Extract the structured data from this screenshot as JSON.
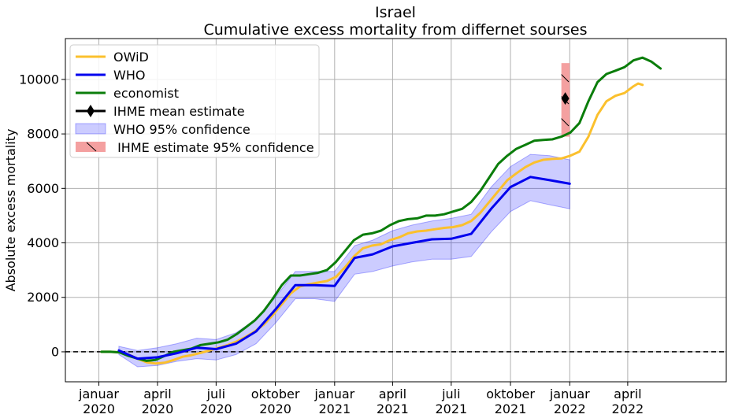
{
  "chart_data": {
    "type": "line",
    "title": "Israel",
    "subtitle": "Cumulative excess mortality from differnet sourses",
    "ylabel": "Absolute excess mortality",
    "xlabel": "",
    "ylim": [
      -1100,
      11500
    ],
    "xlim": [
      "2019-11-10",
      "2022-09-01"
    ],
    "grid": true,
    "legend_position": "top-left",
    "x_ticks": [
      {
        "date": "2020-01-01",
        "line1": "januar",
        "line2": "2020"
      },
      {
        "date": "2020-04-01",
        "line1": "april",
        "line2": "2020"
      },
      {
        "date": "2020-07-01",
        "line1": "juli",
        "line2": "2020"
      },
      {
        "date": "2020-10-01",
        "line1": "oktober",
        "line2": "2020"
      },
      {
        "date": "2021-01-01",
        "line1": "januar",
        "line2": "2021"
      },
      {
        "date": "2021-04-01",
        "line1": "april",
        "line2": "2021"
      },
      {
        "date": "2021-07-01",
        "line1": "juli",
        "line2": "2021"
      },
      {
        "date": "2021-10-01",
        "line1": "oktober",
        "line2": "2021"
      },
      {
        "date": "2022-01-01",
        "line1": "januar",
        "line2": "2022"
      },
      {
        "date": "2022-04-01",
        "line1": "april",
        "line2": "2022"
      }
    ],
    "y_ticks": [
      0,
      2000,
      4000,
      6000,
      8000,
      10000
    ],
    "zero_line": {
      "y": 0,
      "style": "dashed",
      "color": "#000000"
    },
    "series": [
      {
        "name": "OWiD",
        "color": "#fbc02d",
        "points": [
          [
            "2020-01-05",
            0
          ],
          [
            "2020-01-19",
            0
          ],
          [
            "2020-02-02",
            -20
          ],
          [
            "2020-02-16",
            -100
          ],
          [
            "2020-03-01",
            -250
          ],
          [
            "2020-03-15",
            -380
          ],
          [
            "2020-03-29",
            -430
          ],
          [
            "2020-04-12",
            -400
          ],
          [
            "2020-04-26",
            -300
          ],
          [
            "2020-05-10",
            -180
          ],
          [
            "2020-05-24",
            -120
          ],
          [
            "2020-06-07",
            -40
          ],
          [
            "2020-06-21",
            50
          ],
          [
            "2020-07-05",
            150
          ],
          [
            "2020-07-19",
            250
          ],
          [
            "2020-08-02",
            380
          ],
          [
            "2020-08-16",
            550
          ],
          [
            "2020-08-30",
            750
          ],
          [
            "2020-09-13",
            1000
          ],
          [
            "2020-09-27",
            1350
          ],
          [
            "2020-10-11",
            1750
          ],
          [
            "2020-10-25",
            2150
          ],
          [
            "2020-11-08",
            2400
          ],
          [
            "2020-11-22",
            2480
          ],
          [
            "2020-12-06",
            2540
          ],
          [
            "2020-12-20",
            2600
          ],
          [
            "2021-01-03",
            2750
          ],
          [
            "2021-01-17",
            3100
          ],
          [
            "2021-01-31",
            3500
          ],
          [
            "2021-02-14",
            3800
          ],
          [
            "2021-02-28",
            3900
          ],
          [
            "2021-03-14",
            3950
          ],
          [
            "2021-03-28",
            4100
          ],
          [
            "2021-04-11",
            4200
          ],
          [
            "2021-04-25",
            4350
          ],
          [
            "2021-05-09",
            4420
          ],
          [
            "2021-05-23",
            4450
          ],
          [
            "2021-06-06",
            4500
          ],
          [
            "2021-06-20",
            4550
          ],
          [
            "2021-07-04",
            4580
          ],
          [
            "2021-07-18",
            4650
          ],
          [
            "2021-08-01",
            4800
          ],
          [
            "2021-08-15",
            5100
          ],
          [
            "2021-08-29",
            5500
          ],
          [
            "2021-09-12",
            5900
          ],
          [
            "2021-09-26",
            6300
          ],
          [
            "2021-10-10",
            6550
          ],
          [
            "2021-10-24",
            6780
          ],
          [
            "2021-11-07",
            6950
          ],
          [
            "2021-11-21",
            7050
          ],
          [
            "2021-12-05",
            7080
          ],
          [
            "2021-12-19",
            7100
          ],
          [
            "2022-01-02",
            7200
          ],
          [
            "2022-01-16",
            7350
          ],
          [
            "2022-01-30",
            7900
          ],
          [
            "2022-02-13",
            8700
          ],
          [
            "2022-02-27",
            9200
          ],
          [
            "2022-03-13",
            9400
          ],
          [
            "2022-03-27",
            9500
          ],
          [
            "2022-04-10",
            9750
          ],
          [
            "2022-04-17",
            9850
          ],
          [
            "2022-04-24",
            9800
          ]
        ]
      },
      {
        "name": "WHO",
        "color": "#0000ee",
        "points": [
          [
            "2020-02-01",
            50
          ],
          [
            "2020-03-01",
            -250
          ],
          [
            "2020-04-01",
            -200
          ],
          [
            "2020-05-01",
            -50
          ],
          [
            "2020-06-01",
            150
          ],
          [
            "2020-07-01",
            100
          ],
          [
            "2020-08-01",
            300
          ],
          [
            "2020-09-01",
            750
          ],
          [
            "2020-10-01",
            1550
          ],
          [
            "2020-11-01",
            2450
          ],
          [
            "2020-12-01",
            2450
          ],
          [
            "2021-01-01",
            2420
          ],
          [
            "2021-02-01",
            3450
          ],
          [
            "2021-03-01",
            3580
          ],
          [
            "2021-04-01",
            3870
          ],
          [
            "2021-05-01",
            4000
          ],
          [
            "2021-06-01",
            4130
          ],
          [
            "2021-07-01",
            4150
          ],
          [
            "2021-08-01",
            4330
          ],
          [
            "2021-09-01",
            5250
          ],
          [
            "2021-10-01",
            6050
          ],
          [
            "2021-11-01",
            6420
          ],
          [
            "2021-12-01",
            6300
          ],
          [
            "2022-01-01",
            6170
          ]
        ]
      },
      {
        "name": "economist",
        "color": "#0a7d0a",
        "points": [
          [
            "2020-01-05",
            0
          ],
          [
            "2020-01-19",
            0
          ],
          [
            "2020-02-02",
            -20
          ],
          [
            "2020-02-16",
            -150
          ],
          [
            "2020-03-01",
            -250
          ],
          [
            "2020-03-15",
            -330
          ],
          [
            "2020-03-29",
            -300
          ],
          [
            "2020-04-12",
            -150
          ],
          [
            "2020-04-26",
            0
          ],
          [
            "2020-05-10",
            60
          ],
          [
            "2020-05-24",
            120
          ],
          [
            "2020-06-07",
            250
          ],
          [
            "2020-06-21",
            300
          ],
          [
            "2020-07-05",
            350
          ],
          [
            "2020-07-19",
            450
          ],
          [
            "2020-08-02",
            650
          ],
          [
            "2020-08-16",
            900
          ],
          [
            "2020-08-30",
            1150
          ],
          [
            "2020-09-13",
            1500
          ],
          [
            "2020-09-27",
            1950
          ],
          [
            "2020-10-11",
            2450
          ],
          [
            "2020-10-25",
            2800
          ],
          [
            "2020-11-08",
            2800
          ],
          [
            "2020-11-22",
            2850
          ],
          [
            "2020-12-06",
            2900
          ],
          [
            "2020-12-20",
            3000
          ],
          [
            "2021-01-03",
            3300
          ],
          [
            "2021-01-17",
            3700
          ],
          [
            "2021-01-31",
            4100
          ],
          [
            "2021-02-14",
            4300
          ],
          [
            "2021-02-28",
            4350
          ],
          [
            "2021-03-14",
            4450
          ],
          [
            "2021-03-28",
            4650
          ],
          [
            "2021-04-11",
            4800
          ],
          [
            "2021-04-25",
            4870
          ],
          [
            "2021-05-09",
            4900
          ],
          [
            "2021-05-23",
            5000
          ],
          [
            "2021-06-06",
            5000
          ],
          [
            "2021-06-20",
            5050
          ],
          [
            "2021-07-04",
            5150
          ],
          [
            "2021-07-18",
            5250
          ],
          [
            "2021-08-01",
            5500
          ],
          [
            "2021-08-15",
            5900
          ],
          [
            "2021-08-29",
            6400
          ],
          [
            "2021-09-12",
            6900
          ],
          [
            "2021-09-26",
            7200
          ],
          [
            "2021-10-10",
            7450
          ],
          [
            "2021-10-24",
            7600
          ],
          [
            "2021-11-07",
            7750
          ],
          [
            "2021-11-21",
            7780
          ],
          [
            "2021-12-05",
            7800
          ],
          [
            "2021-12-19",
            7900
          ],
          [
            "2022-01-02",
            8050
          ],
          [
            "2022-01-16",
            8400
          ],
          [
            "2022-01-30",
            9200
          ],
          [
            "2022-02-13",
            9900
          ],
          [
            "2022-02-27",
            10200
          ],
          [
            "2022-03-13",
            10320
          ],
          [
            "2022-03-27",
            10450
          ],
          [
            "2022-04-10",
            10700
          ],
          [
            "2022-04-24",
            10800
          ],
          [
            "2022-05-08",
            10650
          ],
          [
            "2022-05-22",
            10400
          ]
        ]
      }
    ],
    "who_ci": {
      "name": "WHO 95% confidence",
      "color": "#0000ff",
      "points": [
        [
          "2020-02-01",
          -100,
          200
        ],
        [
          "2020-03-01",
          -550,
          50
        ],
        [
          "2020-04-01",
          -500,
          150
        ],
        [
          "2020-05-01",
          -350,
          300
        ],
        [
          "2020-06-01",
          -250,
          500
        ],
        [
          "2020-07-01",
          -300,
          450
        ],
        [
          "2020-08-01",
          -100,
          700
        ],
        [
          "2020-09-01",
          300,
          1200
        ],
        [
          "2020-10-01",
          1050,
          2000
        ],
        [
          "2020-11-01",
          1950,
          2950
        ],
        [
          "2020-12-01",
          1950,
          2950
        ],
        [
          "2021-01-01",
          1850,
          2950
        ],
        [
          "2021-02-01",
          2850,
          3900
        ],
        [
          "2021-03-01",
          2950,
          4100
        ],
        [
          "2021-04-01",
          3150,
          4450
        ],
        [
          "2021-05-01",
          3300,
          4650
        ],
        [
          "2021-06-01",
          3400,
          4800
        ],
        [
          "2021-07-01",
          3400,
          4900
        ],
        [
          "2021-08-01",
          3500,
          5050
        ],
        [
          "2021-09-01",
          4400,
          6050
        ],
        [
          "2021-10-01",
          5150,
          6800
        ],
        [
          "2021-11-01",
          5550,
          7250
        ],
        [
          "2021-12-01",
          5400,
          7200
        ],
        [
          "2022-01-01",
          5250,
          7050
        ]
      ]
    },
    "ihme": {
      "mean_name": "IHME mean estimate",
      "ci_name": " IHME estimate 95% confidence",
      "date": "2021-12-25",
      "mean": 9300,
      "lower": 7900,
      "upper": 10600,
      "box_from": "2021-12-19",
      "box_to": "2022-01-01",
      "color": "#f4a0a0"
    }
  }
}
